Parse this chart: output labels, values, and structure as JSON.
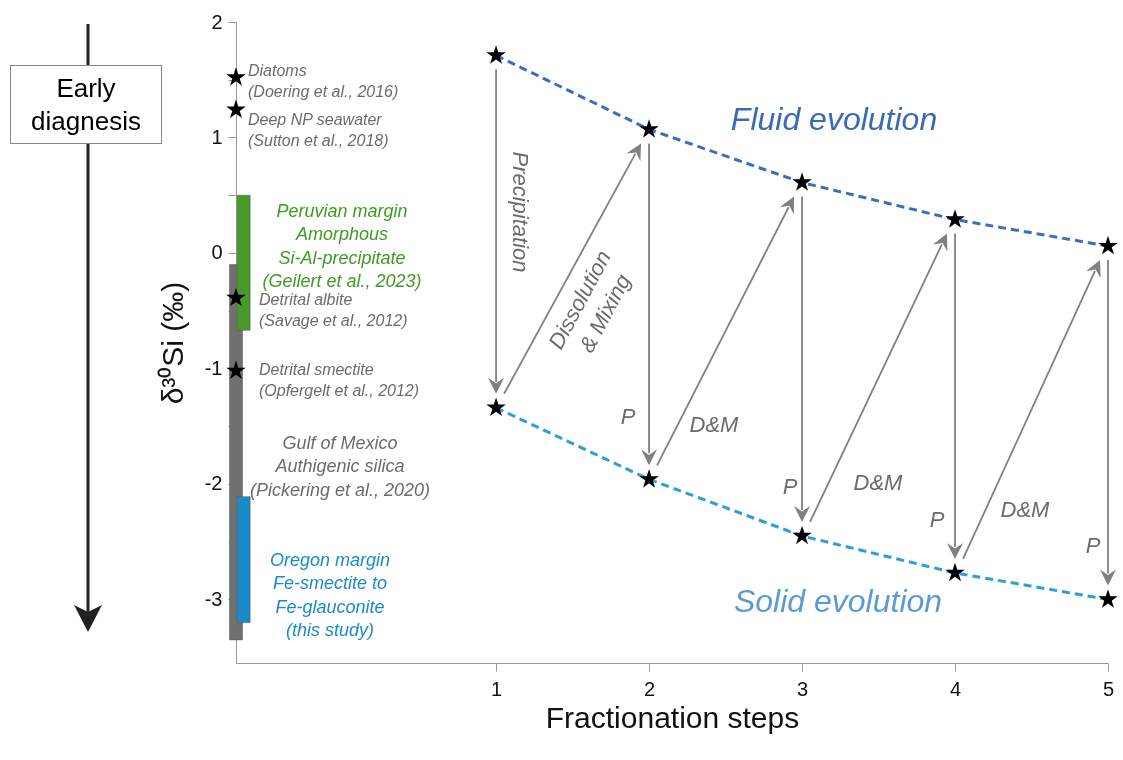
{
  "chart_data": {
    "type": "line",
    "xlabel": "Fractionation steps",
    "ylabel": "δ³⁰Si (‰)",
    "xlim": [
      -0.7,
      5
    ],
    "xticks": [
      1,
      2,
      3,
      4,
      5
    ],
    "ylim": [
      -3.55,
      2
    ],
    "yticks": [
      -3,
      {
        "value": -2.5,
        "label": null
      },
      -2,
      {
        "value": -1.5,
        "label": null
      },
      -1,
      {
        "value": -0.5,
        "label": null
      },
      0,
      {
        "value": 0.5,
        "label": null
      },
      1,
      {
        "value": 1.5,
        "label": null
      },
      2
    ],
    "grid": false,
    "series": [
      {
        "type": "bar",
        "x": [
          -0.7
        ],
        "base": [
          -3.35
        ],
        "values": [
          3.25
        ],
        "color": "#707070"
      },
      {
        "type": "bar",
        "x": [
          -0.65
        ],
        "base": [
          -0.67
        ],
        "values": [
          1.17
        ],
        "color": "#4a9a2a"
      },
      {
        "type": "bar",
        "x": [
          -0.65
        ],
        "base": [
          -3.2
        ],
        "values": [
          1.09
        ],
        "color": "#1a8ac8"
      },
      {
        "type": "scatter",
        "x": [
          -0.7,
          -0.7,
          -0.7,
          -0.7
        ],
        "values": [
          1.52,
          1.24,
          -0.39,
          -1.02
        ],
        "color": "#000000",
        "marker": "star"
      },
      {
        "x": [
          1,
          2,
          3,
          4,
          5
        ],
        "values": [
          1.71,
          1.07,
          0.61,
          0.29,
          0.06
        ],
        "color": "#3a6fc0",
        "line_style": "dashed",
        "marker": "star"
      },
      {
        "x": [
          1,
          2,
          3,
          4,
          5
        ],
        "values": [
          -1.34,
          -1.96,
          -2.45,
          -2.77,
          -3.0
        ],
        "color": "#2a9fd8",
        "line_style": "dashed",
        "marker": "star"
      }
    ],
    "annotations": [
      "Early diagnesis",
      "Diatoms\n(Doering et al., 2016)",
      "Deep NP seawater\n(Sutton et al., 2018)",
      "Peruvian margin\nAmorphous\nSi-Al-precipitate\n(Geilert et al., 2023)",
      "Detrital albite\n(Savage et al., 2012)",
      "Detrital smectite\n(Opfergelt et al., 2012)",
      "Gulf of Mexico\nAuthigenic silica\n(Pickering et al., 2020)",
      "Oregon margin\nFe-smectite to\nFe-glauconite\n(this study)",
      "Fluid evolution",
      "Solid evolution",
      "Precipitation",
      "Dissolution\n& Mixing",
      "P",
      "P",
      "P",
      "P",
      "D&M",
      "D&M",
      "D&M"
    ]
  }
}
